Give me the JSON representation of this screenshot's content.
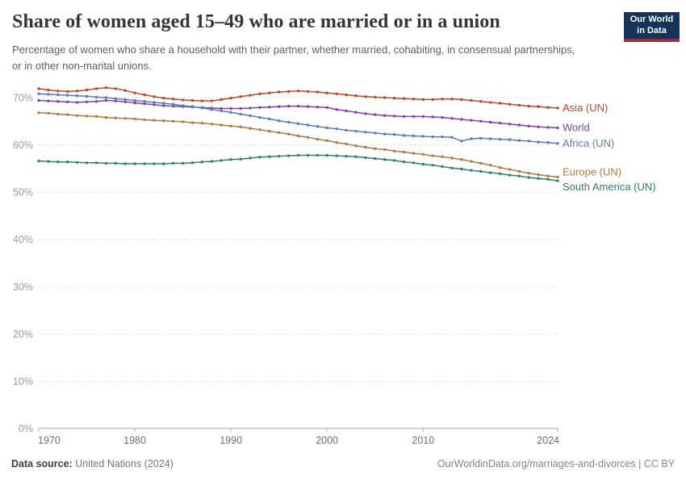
{
  "logo": {
    "line1": "Our World",
    "line2": "in Data"
  },
  "header": {
    "title": "Share of women aged 15–49 who are married or in a union",
    "subtitle": "Percentage of women who share a household with their partner, whether married, cohabiting, in consensual partnerships, or in other non-marital unions."
  },
  "footer": {
    "source_label": "Data source:",
    "source_value": " United Nations (2024)",
    "credit": "OurWorldinData.org/marriages-and-divorces | CC BY"
  },
  "chart_data": {
    "type": "line",
    "title": "Share of women aged 15–49 who are married or in a union",
    "xlabel": "",
    "ylabel": "",
    "ylim": [
      0,
      72.8
    ],
    "xlim": [
      1970,
      2024
    ],
    "grid": "horizontal-dashed",
    "legend_position": "right-of-line-ends",
    "yticks": [
      0,
      10,
      20,
      30,
      40,
      50,
      60,
      70
    ],
    "ytick_labels": [
      "0%",
      "10%",
      "20%",
      "30%",
      "40%",
      "50%",
      "60%",
      "70%"
    ],
    "xticks": [
      1970,
      1980,
      1990,
      2000,
      2010,
      2024
    ],
    "xtick_labels": [
      "1970",
      "1980",
      "1990",
      "2000",
      "2010",
      "2024"
    ],
    "x": [
      1970,
      1971,
      1972,
      1973,
      1974,
      1975,
      1976,
      1977,
      1978,
      1979,
      1980,
      1981,
      1982,
      1983,
      1984,
      1985,
      1986,
      1987,
      1988,
      1989,
      1990,
      1991,
      1992,
      1993,
      1994,
      1995,
      1996,
      1997,
      1998,
      1999,
      2000,
      2001,
      2002,
      2003,
      2004,
      2005,
      2006,
      2007,
      2008,
      2009,
      2010,
      2011,
      2012,
      2013,
      2014,
      2015,
      2016,
      2017,
      2018,
      2019,
      2020,
      2021,
      2022,
      2023,
      2024
    ],
    "series": [
      {
        "name": "Asia (UN)",
        "color": "#b5492b",
        "label_dy": 0,
        "values": [
          71.9,
          71.6,
          71.4,
          71.3,
          71.4,
          71.6,
          71.9,
          72.1,
          71.9,
          71.5,
          71.0,
          70.6,
          70.2,
          69.9,
          69.7,
          69.5,
          69.4,
          69.3,
          69.3,
          69.6,
          69.9,
          70.2,
          70.5,
          70.8,
          71.0,
          71.2,
          71.3,
          71.4,
          71.3,
          71.2,
          71.0,
          70.8,
          70.6,
          70.4,
          70.2,
          70.1,
          70.0,
          69.9,
          69.8,
          69.7,
          69.6,
          69.6,
          69.7,
          69.7,
          69.6,
          69.4,
          69.2,
          69.0,
          68.8,
          68.6,
          68.4,
          68.2,
          68.1,
          67.9,
          67.8
        ]
      },
      {
        "name": "World",
        "color": "#7e43a8",
        "label_dy": 0,
        "values": [
          69.4,
          69.3,
          69.2,
          69.1,
          69.0,
          69.1,
          69.2,
          69.4,
          69.3,
          69.1,
          68.9,
          68.7,
          68.5,
          68.3,
          68.2,
          68.1,
          68.0,
          67.9,
          67.8,
          67.7,
          67.7,
          67.7,
          67.8,
          67.9,
          68.0,
          68.1,
          68.2,
          68.2,
          68.1,
          68.0,
          67.9,
          67.5,
          67.2,
          66.9,
          66.6,
          66.4,
          66.2,
          66.1,
          66.0,
          66.0,
          66.0,
          65.9,
          65.8,
          65.6,
          65.4,
          65.2,
          65.0,
          64.8,
          64.6,
          64.4,
          64.2,
          64.0,
          63.8,
          63.7,
          63.6
        ]
      },
      {
        "name": "Africa (UN)",
        "color": "#5b7bb6",
        "label_dy": 0,
        "values": [
          70.8,
          70.7,
          70.6,
          70.5,
          70.4,
          70.3,
          70.1,
          70.0,
          69.8,
          69.6,
          69.4,
          69.2,
          69.0,
          68.8,
          68.6,
          68.3,
          68.1,
          67.8,
          67.5,
          67.2,
          66.9,
          66.5,
          66.2,
          65.8,
          65.5,
          65.1,
          64.8,
          64.5,
          64.2,
          63.9,
          63.6,
          63.4,
          63.1,
          62.9,
          62.7,
          62.5,
          62.3,
          62.2,
          62.0,
          61.9,
          61.8,
          61.7,
          61.7,
          61.6,
          60.8,
          61.3,
          61.4,
          61.3,
          61.2,
          61.1,
          60.9,
          60.8,
          60.6,
          60.5,
          60.3
        ]
      },
      {
        "name": "Europe (UN)",
        "color": "#a97c41",
        "label_dy": -6,
        "values": [
          66.8,
          66.7,
          66.5,
          66.4,
          66.2,
          66.1,
          66.0,
          65.8,
          65.7,
          65.6,
          65.5,
          65.3,
          65.2,
          65.1,
          65.0,
          64.9,
          64.7,
          64.6,
          64.4,
          64.2,
          64.0,
          63.8,
          63.5,
          63.2,
          62.9,
          62.6,
          62.3,
          61.9,
          61.6,
          61.2,
          60.9,
          60.5,
          60.2,
          59.8,
          59.5,
          59.2,
          59.0,
          58.7,
          58.5,
          58.2,
          58.0,
          57.7,
          57.5,
          57.2,
          56.9,
          56.5,
          56.1,
          55.7,
          55.2,
          54.8,
          54.4,
          54.0,
          53.7,
          53.4,
          53.2
        ]
      },
      {
        "name": "South America (UN)",
        "color": "#2c8465",
        "label_dy": 8,
        "values": [
          56.6,
          56.5,
          56.4,
          56.4,
          56.3,
          56.2,
          56.2,
          56.1,
          56.1,
          56.0,
          56.0,
          56.0,
          56.0,
          56.0,
          56.1,
          56.1,
          56.2,
          56.4,
          56.5,
          56.7,
          56.9,
          57.0,
          57.2,
          57.4,
          57.5,
          57.6,
          57.7,
          57.8,
          57.8,
          57.8,
          57.8,
          57.7,
          57.6,
          57.5,
          57.3,
          57.1,
          56.9,
          56.7,
          56.4,
          56.2,
          55.9,
          55.7,
          55.4,
          55.1,
          54.9,
          54.6,
          54.4,
          54.1,
          53.9,
          53.6,
          53.4,
          53.1,
          52.9,
          52.7,
          52.4
        ]
      }
    ]
  }
}
